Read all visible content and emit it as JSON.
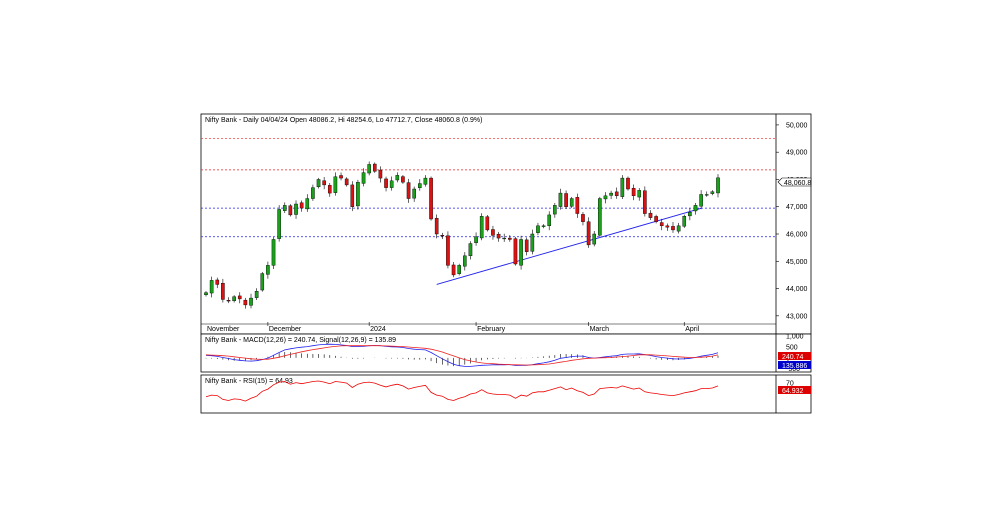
{
  "chart_data": [
    {
      "type": "candlestick",
      "title": "Nifty Bank - Daily 04/04/24 Open 48086.2, Hi 48254.6, Lo 47712.7, Close 48060.8 (0.9%)",
      "last_value_label": "48,060.8",
      "y_ticks": [
        "50,000",
        "49,000",
        "48,000",
        "47,000",
        "46,000",
        "45,000",
        "44,000",
        "43,000"
      ],
      "y_tick_values": [
        50000,
        49000,
        48000,
        47000,
        46000,
        45000,
        44000,
        43000
      ],
      "ylim": [
        42700,
        50400
      ],
      "x_labels": [
        "November",
        "December",
        "2024",
        "February",
        "March",
        "April"
      ],
      "x_label_index": [
        0,
        11,
        29,
        48,
        68,
        85
      ],
      "resistance_levels": [
        49500,
        48350
      ],
      "support_levels": [
        46950,
        45900
      ],
      "trendline": {
        "from": [
          41,
          44150
        ],
        "to": [
          88,
          46940
        ]
      },
      "series_close": [
        43850,
        44300,
        44150,
        43600,
        43550,
        43700,
        43620,
        43400,
        43650,
        43900,
        44550,
        44850,
        45800,
        46900,
        47050,
        46700,
        47100,
        46950,
        47300,
        47700,
        48000,
        47800,
        47500,
        48100,
        48050,
        47800,
        47000,
        47900,
        48250,
        48550,
        48300,
        48050,
        47700,
        47950,
        48150,
        47900,
        47300,
        47650,
        47850,
        48050,
        46550,
        46000,
        45950,
        44850,
        44500,
        44850,
        45200,
        45650,
        45900,
        46650,
        46150,
        45950,
        45850,
        45850,
        45800,
        44900,
        45800,
        45350,
        46000,
        46300,
        46300,
        46700,
        47050,
        47500,
        47000,
        47300,
        46750,
        46450,
        45600,
        46000,
        47300,
        47400,
        47500,
        47400,
        48050,
        47650,
        47400,
        47600,
        46750,
        46600,
        46450,
        46300,
        46250,
        46150,
        46300,
        46650,
        46800,
        47050,
        47450,
        47450,
        47550,
        48060
      ]
    },
    {
      "type": "line",
      "title": "Nifty Bank - MACD(12,26) = 240.74, Signal(12,26,9) = 135.89",
      "y_ticks": [
        "1,000",
        "500",
        "0",
        "-500"
      ],
      "y_tick_values": [
        1000,
        500,
        0,
        -500
      ],
      "ylim": [
        -650,
        1100
      ],
      "series": [
        {
          "values": [
            120,
            100,
            70,
            20,
            -30,
            -80,
            -110,
            -140,
            -150,
            -130,
            -80,
            -10,
            120,
            250,
            370,
            420,
            460,
            490,
            520,
            560,
            600,
            620,
            630,
            620,
            600,
            570,
            520,
            520,
            530,
            560,
            570,
            560,
            530,
            510,
            500,
            480,
            430,
            400,
            380,
            370,
            250,
            100,
            -40,
            -170,
            -290,
            -360,
            -390,
            -390,
            -370,
            -340,
            -330,
            -320,
            -320,
            -320,
            -310,
            -350,
            -340,
            -340,
            -310,
            -270,
            -230,
            -180,
            -110,
            -20,
            20,
            60,
            80,
            80,
            20,
            -10,
            20,
            50,
            80,
            100,
            160,
            180,
            180,
            190,
            150,
            110,
            60,
            20,
            -10,
            -40,
            -50,
            -40,
            -20,
            20,
            80,
            120,
            160,
            240.74
          ],
          "color": "#2222ee"
        },
        {
          "values": [
            140,
            130,
            120,
            100,
            80,
            50,
            20,
            -10,
            -40,
            -60,
            -70,
            -60,
            -20,
            30,
            100,
            160,
            220,
            280,
            330,
            380,
            420,
            460,
            500,
            530,
            550,
            560,
            560,
            560,
            560,
            560,
            560,
            560,
            550,
            540,
            530,
            520,
            500,
            480,
            460,
            440,
            400,
            340,
            270,
            180,
            90,
            0,
            -80,
            -140,
            -190,
            -230,
            -260,
            -270,
            -290,
            -300,
            -310,
            -320,
            -325,
            -330,
            -325,
            -315,
            -300,
            -280,
            -240,
            -200,
            -160,
            -110,
            -80,
            -40,
            -20,
            -10,
            0,
            10,
            20,
            40,
            60,
            80,
            110,
            140,
            145,
            140,
            130,
            110,
            90,
            70,
            50,
            30,
            20,
            20,
            30,
            50,
            80,
            135.89
          ],
          "color": "#ee2222"
        }
      ],
      "histogram": "MACD minus Signal",
      "value_labels": [
        "240.74",
        "135.886"
      ]
    },
    {
      "type": "line",
      "title": "Nifty Bank - RSI(15) = 64.93",
      "y_ticks": [
        "70"
      ],
      "y_tick_values": [
        70
      ],
      "ylim": [
        15,
        85
      ],
      "series": [
        {
          "values": [
            45,
            48,
            47,
            40,
            38,
            41,
            40,
            37,
            42,
            46,
            55,
            59,
            67,
            72,
            73,
            68,
            71,
            69,
            71,
            73,
            74,
            72,
            69,
            73,
            72,
            70,
            62,
            68,
            71,
            72,
            70,
            66,
            63,
            66,
            68,
            65,
            59,
            62,
            64,
            66,
            53,
            48,
            46,
            40,
            38,
            42,
            45,
            50,
            52,
            58,
            52,
            50,
            49,
            49,
            48,
            42,
            48,
            46,
            52,
            54,
            54,
            57,
            60,
            63,
            58,
            61,
            56,
            53,
            47,
            50,
            60,
            61,
            62,
            61,
            65,
            62,
            59,
            61,
            54,
            52,
            51,
            49,
            48,
            47,
            49,
            52,
            54,
            56,
            60,
            60,
            61,
            64.93
          ],
          "color": "#ee0000"
        }
      ],
      "value_labels": [
        "64.932"
      ]
    }
  ]
}
